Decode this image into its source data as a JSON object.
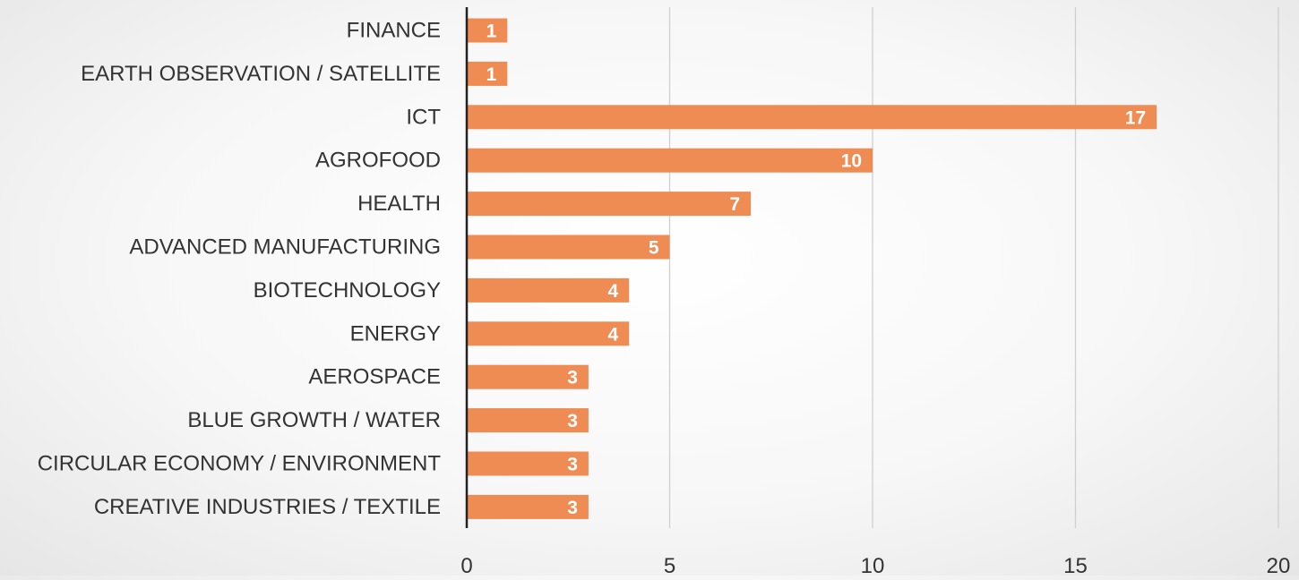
{
  "chart_data": {
    "type": "bar",
    "orientation": "horizontal",
    "categories": [
      "FINANCE",
      "EARTH OBSERVATION / SATELLITE",
      "ICT",
      "AGROFOOD",
      "HEALTH",
      "ADVANCED MANUFACTURING",
      "BIOTECHNOLOGY",
      "ENERGY",
      "AEROSPACE",
      "BLUE GROWTH / WATER",
      "CIRCULAR ECONOMY / ENVIRONMENT",
      "CREATIVE INDUSTRIES / TEXTILE"
    ],
    "values": [
      1,
      1,
      17,
      10,
      7,
      5,
      4,
      4,
      3,
      3,
      3,
      3
    ],
    "data_labels": [
      "1",
      "1",
      "17",
      "10",
      "7",
      "5",
      "4",
      "4",
      "3",
      "3",
      "3",
      "3"
    ],
    "x_ticks": [
      "0",
      "5",
      "10",
      "15",
      "20"
    ],
    "xlim": [
      0,
      20
    ],
    "title": "",
    "xlabel": "",
    "ylabel": "",
    "grid": true,
    "legend": "none",
    "colors": {
      "bar": "#ef8c54",
      "gridline": "#cfcfcf",
      "axis": "#222222",
      "text": "#333333",
      "data_label": "#ffffff"
    }
  }
}
